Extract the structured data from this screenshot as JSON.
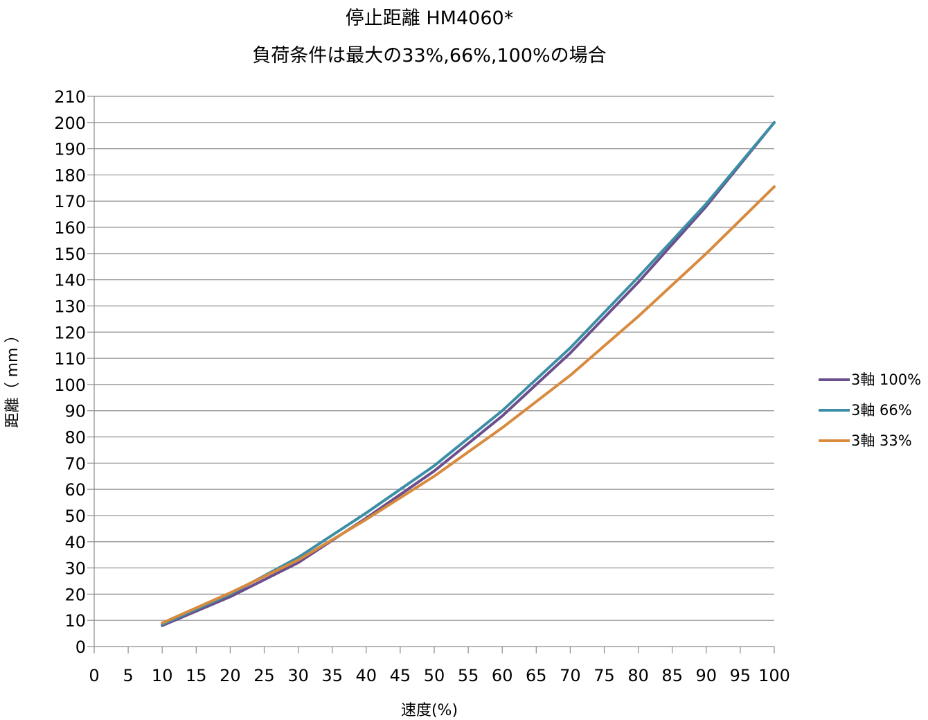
{
  "chart_data": {
    "type": "line",
    "title": "停止距離 HM4060*",
    "subtitle": "負荷条件は最大の33%,66%,100%の場合",
    "xlabel": "速度(%)",
    "ylabel": "距離（ mm ）",
    "xlim": [
      0,
      100
    ],
    "ylim": [
      0,
      210
    ],
    "x_ticks": [
      0,
      5,
      10,
      15,
      20,
      25,
      30,
      35,
      40,
      45,
      50,
      55,
      60,
      65,
      70,
      75,
      80,
      85,
      90,
      95,
      100
    ],
    "y_ticks": [
      0,
      10,
      20,
      30,
      40,
      50,
      60,
      70,
      80,
      90,
      100,
      110,
      120,
      130,
      140,
      150,
      160,
      170,
      180,
      190,
      200,
      210
    ],
    "grid": "horizontal",
    "legend_position": "right",
    "x": [
      10,
      20,
      30,
      40,
      50,
      60,
      70,
      80,
      90,
      100
    ],
    "series": [
      {
        "name": "3軸 100%",
        "color": "#6b4e8c",
        "values": [
          8,
          19,
          32,
          49,
          67,
          88,
          112,
          139,
          168,
          200
        ]
      },
      {
        "name": "3軸 66%",
        "color": "#3b8ea5",
        "values": [
          8.5,
          20,
          34,
          51,
          69,
          90,
          114,
          141,
          169,
          200
        ]
      },
      {
        "name": "3軸 33%",
        "color": "#d88a3e",
        "values": [
          9,
          20.5,
          33,
          48.5,
          65,
          83.5,
          103.5,
          126,
          150,
          175.5
        ]
      }
    ]
  }
}
